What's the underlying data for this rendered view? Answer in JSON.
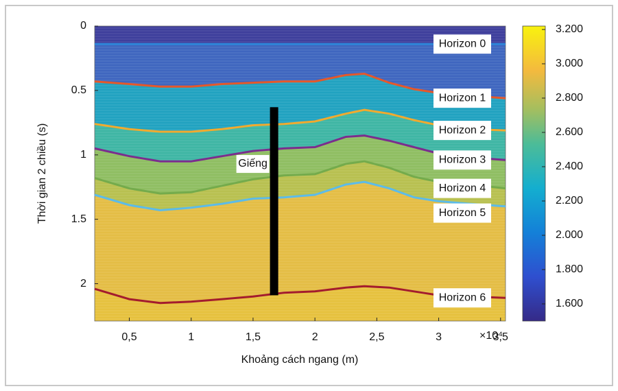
{
  "chart_data": {
    "type": "line",
    "xlabel": "Khoảng cách ngang (m)",
    "ylabel": "Thời gian 2 chiều (s)",
    "x_scale_label": "×10⁴",
    "xlim": [
      0.22,
      3.54
    ],
    "xticks": [
      {
        "value": 0.5,
        "label": "0,5"
      },
      1,
      {
        "value": 1.5,
        "label": "1,5"
      },
      2,
      {
        "value": 2.5,
        "label": "2,5"
      },
      3,
      {
        "value": 3.5,
        "label": "3,5"
      }
    ],
    "ylim": [
      0,
      2.29
    ],
    "yticks": [
      0,
      0.5,
      1,
      1.5,
      2
    ],
    "y_inverted": true,
    "colorbar": {
      "lim": [
        1.5,
        3.22
      ],
      "ticks": [
        {
          "value": 1.6,
          "label": "1.600"
        },
        {
          "value": 1.8,
          "label": "1.800"
        },
        {
          "value": 2.0,
          "label": "2.000"
        },
        {
          "value": 2.2,
          "label": "2.200"
        },
        {
          "value": 2.4,
          "label": "2.400"
        },
        {
          "value": 2.6,
          "label": "2.600"
        },
        {
          "value": 2.8,
          "label": "2.800"
        },
        {
          "value": 3.0,
          "label": "3.000"
        },
        {
          "value": 3.2,
          "label": "3.200"
        }
      ]
    },
    "well": {
      "label": "Giếng",
      "x": 1.67,
      "top": 0.63,
      "bottom": 2.09
    },
    "x": [
      0.22,
      0.5,
      0.75,
      1.0,
      1.25,
      1.5,
      1.75,
      2.0,
      2.25,
      2.4,
      2.6,
      2.8,
      3.0,
      3.25,
      3.54
    ],
    "series": [
      {
        "name": "Horizon 0",
        "color": "#2f86d8",
        "values": [
          0.14,
          0.14,
          0.14,
          0.14,
          0.14,
          0.14,
          0.14,
          0.14,
          0.14,
          0.14,
          0.14,
          0.14,
          0.14,
          0.14,
          0.14
        ]
      },
      {
        "name": "Horizon 1",
        "color": "#e5582a",
        "values": [
          0.43,
          0.45,
          0.47,
          0.47,
          0.45,
          0.44,
          0.43,
          0.43,
          0.38,
          0.37,
          0.44,
          0.49,
          0.52,
          0.54,
          0.56
        ]
      },
      {
        "name": "Horizon 2",
        "color": "#f2aa2e",
        "values": [
          0.76,
          0.8,
          0.82,
          0.82,
          0.8,
          0.77,
          0.76,
          0.74,
          0.68,
          0.65,
          0.68,
          0.73,
          0.77,
          0.8,
          0.81
        ]
      },
      {
        "name": "Horizon 3",
        "color": "#7b2d8e",
        "values": [
          0.95,
          1.01,
          1.05,
          1.05,
          1.01,
          0.97,
          0.95,
          0.94,
          0.86,
          0.85,
          0.89,
          0.94,
          0.99,
          1.02,
          1.04
        ]
      },
      {
        "name": "Horizon 4",
        "color": "#74ab4c",
        "values": [
          1.18,
          1.26,
          1.3,
          1.29,
          1.24,
          1.19,
          1.16,
          1.15,
          1.07,
          1.05,
          1.1,
          1.17,
          1.21,
          1.23,
          1.26
        ]
      },
      {
        "name": "Horizon 5",
        "color": "#5cbbe9",
        "values": [
          1.31,
          1.39,
          1.43,
          1.41,
          1.38,
          1.34,
          1.33,
          1.31,
          1.23,
          1.21,
          1.26,
          1.33,
          1.36,
          1.38,
          1.4
        ]
      },
      {
        "name": "Horizon 6",
        "color": "#a31c2e",
        "values": [
          2.04,
          2.12,
          2.15,
          2.14,
          2.12,
          2.1,
          2.07,
          2.06,
          2.03,
          2.02,
          2.03,
          2.06,
          2.09,
          2.1,
          2.11
        ]
      }
    ]
  }
}
